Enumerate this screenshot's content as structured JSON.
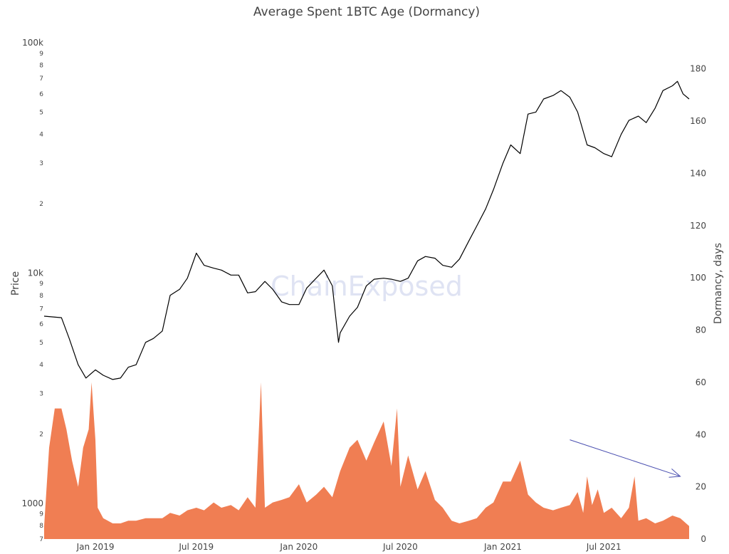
{
  "chart_data": {
    "type": "line",
    "title": "Average Spent 1BTC Age (Dormancy)",
    "watermark": "ChainExposed",
    "x_ticks": [
      "Jan 2019",
      "Jul 2019",
      "Jan 2020",
      "Jul 2020",
      "Jan 2021",
      "Jul 2021"
    ],
    "xlim": [
      "2018-10",
      "2021-12"
    ],
    "y_left": {
      "label": "Price",
      "scale": "log",
      "range": [
        700,
        100000
      ],
      "major_ticks": [
        "1000",
        "10k",
        "100k"
      ],
      "minor_ticks": [
        {
          "v": 700,
          "label": "7"
        },
        {
          "v": 800,
          "label": "8"
        },
        {
          "v": 900,
          "label": "9"
        },
        {
          "v": 2000,
          "label": "2"
        },
        {
          "v": 3000,
          "label": "3"
        },
        {
          "v": 4000,
          "label": "4"
        },
        {
          "v": 5000,
          "label": "5"
        },
        {
          "v": 6000,
          "label": "6"
        },
        {
          "v": 7000,
          "label": "7"
        },
        {
          "v": 8000,
          "label": "8"
        },
        {
          "v": 9000,
          "label": "9"
        },
        {
          "v": 20000,
          "label": "2"
        },
        {
          "v": 30000,
          "label": "3"
        },
        {
          "v": 40000,
          "label": "4"
        },
        {
          "v": 50000,
          "label": "5"
        },
        {
          "v": 60000,
          "label": "6"
        },
        {
          "v": 70000,
          "label": "7"
        },
        {
          "v": 80000,
          "label": "8"
        },
        {
          "v": 90000,
          "label": "9"
        }
      ]
    },
    "y_right": {
      "label": "Dormancy, days",
      "range": [
        0,
        190
      ],
      "ticks": [
        "0",
        "20",
        "40",
        "60",
        "80",
        "100",
        "120",
        "140",
        "160",
        "180"
      ]
    },
    "grid": false,
    "legend": "none",
    "colors": {
      "price": "#000000",
      "dormancy": "#f07e53",
      "arrow": "#4a4fb0"
    },
    "series": [
      {
        "axis": "left",
        "style": "line",
        "x": [
          "2018-10-01",
          "2018-11-01",
          "2018-11-15",
          "2018-12-01",
          "2018-12-15",
          "2019-01-01",
          "2019-01-15",
          "2019-02-01",
          "2019-02-15",
          "2019-03-01",
          "2019-03-15",
          "2019-04-01",
          "2019-04-15",
          "2019-05-01",
          "2019-05-15",
          "2019-06-01",
          "2019-06-15",
          "2019-07-01",
          "2019-07-15",
          "2019-08-01",
          "2019-08-15",
          "2019-09-01",
          "2019-09-15",
          "2019-10-01",
          "2019-10-15",
          "2019-11-01",
          "2019-11-15",
          "2019-12-01",
          "2019-12-15",
          "2020-01-01",
          "2020-01-15",
          "2020-02-01",
          "2020-02-15",
          "2020-03-01",
          "2020-03-12",
          "2020-03-15",
          "2020-04-01",
          "2020-04-15",
          "2020-05-01",
          "2020-05-15",
          "2020-06-01",
          "2020-06-15",
          "2020-07-01",
          "2020-07-15",
          "2020-08-01",
          "2020-08-15",
          "2020-09-01",
          "2020-09-15",
          "2020-10-01",
          "2020-10-15",
          "2020-11-01",
          "2020-11-15",
          "2020-12-01",
          "2020-12-15",
          "2021-01-01",
          "2021-01-15",
          "2021-02-01",
          "2021-02-15",
          "2021-03-01",
          "2021-03-15",
          "2021-04-01",
          "2021-04-15",
          "2021-05-01",
          "2021-05-15",
          "2021-06-01",
          "2021-06-15",
          "2021-07-01",
          "2021-07-15",
          "2021-08-01",
          "2021-08-15",
          "2021-09-01",
          "2021-09-15",
          "2021-10-01",
          "2021-10-15",
          "2021-11-01",
          "2021-11-10",
          "2021-11-20",
          "2021-12-01"
        ],
        "values": [
          6500,
          6400,
          5200,
          4000,
          3500,
          3800,
          3600,
          3450,
          3500,
          3900,
          4000,
          5000,
          5200,
          5600,
          8000,
          8500,
          9500,
          12200,
          10800,
          10500,
          10300,
          9800,
          9800,
          8200,
          8300,
          9200,
          8500,
          7500,
          7300,
          7300,
          8600,
          9500,
          10300,
          8800,
          5000,
          5500,
          6500,
          7100,
          8800,
          9400,
          9500,
          9400,
          9200,
          9500,
          11300,
          11800,
          11600,
          10800,
          10600,
          11500,
          13800,
          16000,
          19000,
          23000,
          30000,
          36000,
          33000,
          49000,
          50000,
          57000,
          59000,
          62000,
          58000,
          50000,
          36000,
          35000,
          33000,
          32000,
          40000,
          46000,
          48000,
          45000,
          52000,
          62000,
          65000,
          68000,
          60000,
          57000
        ]
      },
      {
        "axis": "right",
        "style": "area",
        "x": [
          "2018-10-01",
          "2018-10-10",
          "2018-10-20",
          "2018-11-01",
          "2018-11-10",
          "2018-11-20",
          "2018-12-01",
          "2018-12-10",
          "2018-12-20",
          "2018-12-25",
          "2019-01-01",
          "2019-01-05",
          "2019-01-15",
          "2019-02-01",
          "2019-02-15",
          "2019-03-01",
          "2019-03-15",
          "2019-04-01",
          "2019-04-15",
          "2019-05-01",
          "2019-05-15",
          "2019-06-01",
          "2019-06-15",
          "2019-07-01",
          "2019-07-15",
          "2019-08-01",
          "2019-08-15",
          "2019-09-01",
          "2019-09-15",
          "2019-10-01",
          "2019-10-15",
          "2019-10-25",
          "2019-11-01",
          "2019-11-15",
          "2019-12-01",
          "2019-12-15",
          "2020-01-01",
          "2020-01-15",
          "2020-02-01",
          "2020-02-15",
          "2020-03-01",
          "2020-03-15",
          "2020-04-01",
          "2020-04-15",
          "2020-05-01",
          "2020-05-15",
          "2020-06-01",
          "2020-06-15",
          "2020-06-25",
          "2020-07-01",
          "2020-07-15",
          "2020-08-01",
          "2020-08-15",
          "2020-09-01",
          "2020-09-15",
          "2020-10-01",
          "2020-10-15",
          "2020-11-01",
          "2020-11-15",
          "2020-12-01",
          "2020-12-15",
          "2021-01-01",
          "2021-01-15",
          "2021-02-01",
          "2021-02-15",
          "2021-03-01",
          "2021-03-15",
          "2021-04-01",
          "2021-04-15",
          "2021-05-01",
          "2021-05-15",
          "2021-05-25",
          "2021-06-01",
          "2021-06-10",
          "2021-06-20",
          "2021-07-01",
          "2021-07-15",
          "2021-08-01",
          "2021-08-15",
          "2021-08-25",
          "2021-09-01",
          "2021-09-15",
          "2021-10-01",
          "2021-10-15",
          "2021-11-01",
          "2021-11-15",
          "2021-12-01"
        ],
        "values": [
          5,
          35,
          50,
          50,
          42,
          30,
          20,
          35,
          42,
          60,
          38,
          12,
          8,
          6,
          6,
          7,
          7,
          8,
          8,
          8,
          10,
          9,
          11,
          12,
          11,
          14,
          12,
          13,
          11,
          16,
          12,
          60,
          12,
          14,
          15,
          16,
          21,
          14,
          17,
          20,
          16,
          26,
          35,
          38,
          30,
          37,
          45,
          28,
          50,
          20,
          32,
          19,
          26,
          15,
          12,
          7,
          6,
          7,
          8,
          12,
          14,
          22,
          22,
          30,
          17,
          14,
          12,
          11,
          12,
          13,
          18,
          10,
          24,
          13,
          19,
          10,
          12,
          8,
          12,
          24,
          7,
          8,
          6,
          7,
          9,
          8,
          5
        ]
      }
    ],
    "annotations": [
      {
        "type": "arrow",
        "from": {
          "x": "2021-05-01",
          "y": 38
        },
        "to": {
          "x": "2021-11-15",
          "y": 24
        }
      }
    ]
  }
}
